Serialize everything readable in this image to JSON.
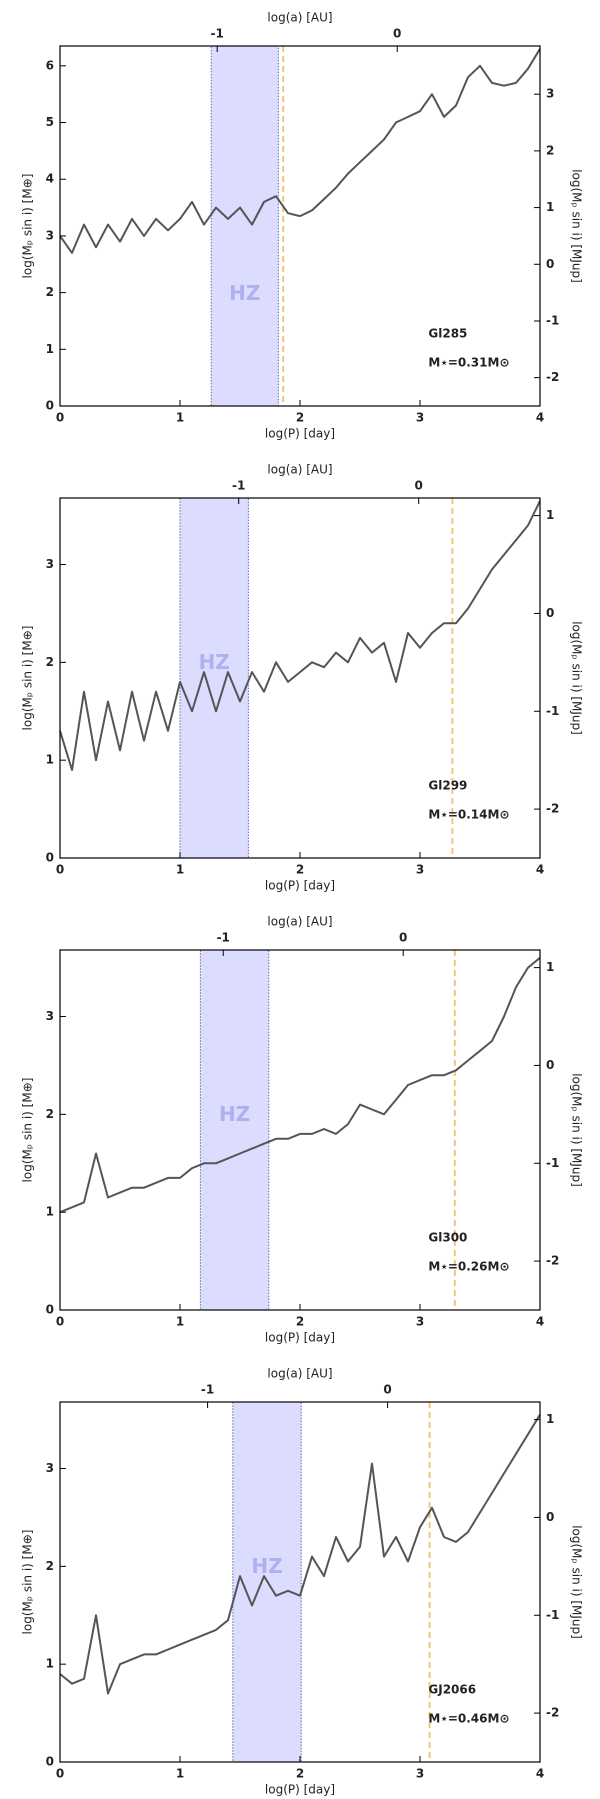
{
  "chart_data": [
    {
      "type": "line",
      "xlabel": "log(P) [day]",
      "ylabel": "log(Mₚ sin i) [M⊕]",
      "y2label": "log(Mₚ sin i) [MJup]",
      "x2label": "log(a) [AU]",
      "star": "Gl285",
      "mass": "M⋆=0.31M⊙",
      "hz_label": "HZ",
      "hz": [
        1.26,
        1.82
      ],
      "vline": 1.86,
      "color": "#555555",
      "xlim": [
        0,
        4
      ],
      "xticks": [
        0,
        1,
        2,
        3,
        4
      ],
      "ylim": [
        0,
        6.35
      ],
      "yticks": [
        0,
        1,
        2,
        3,
        4,
        5,
        6
      ],
      "y2lim": [
        -2.5,
        3.85
      ],
      "y2ticks": [
        -2,
        -1,
        0,
        1,
        2,
        3
      ],
      "x2lim": [
        -1.873,
        0.793
      ],
      "x2ticks": [
        -1,
        0
      ],
      "x": [
        0,
        0.1,
        0.2,
        0.3,
        0.4,
        0.5,
        0.6,
        0.7,
        0.8,
        0.9,
        1,
        1.1,
        1.2,
        1.3,
        1.4,
        1.5,
        1.6,
        1.7,
        1.8,
        1.9,
        2,
        2.1,
        2.2,
        2.3,
        2.4,
        2.5,
        2.6,
        2.7,
        2.8,
        2.9,
        3,
        3.1,
        3.2,
        3.3,
        3.4,
        3.5,
        3.6,
        3.7,
        3.8,
        3.9,
        4
      ],
      "values": [
        3.0,
        2.7,
        3.2,
        2.8,
        3.2,
        2.9,
        3.3,
        3.0,
        3.3,
        3.1,
        3.3,
        3.6,
        3.2,
        3.5,
        3.3,
        3.5,
        3.2,
        3.6,
        3.7,
        3.4,
        3.35,
        3.45,
        3.65,
        3.85,
        4.1,
        4.3,
        4.5,
        4.7,
        5.0,
        5.1,
        5.2,
        5.5,
        5.1,
        5.3,
        5.8,
        6.0,
        5.7,
        5.65,
        5.7,
        5.95,
        6.3
      ]
    },
    {
      "type": "line",
      "xlabel": "log(P) [day]",
      "ylabel": "log(Mₚ sin i) [M⊕]",
      "y2label": "log(Mₚ sin i) [MJup]",
      "x2label": "log(a) [AU]",
      "star": "Gl299",
      "mass": "M⋆=0.14M⊙",
      "hz_label": "HZ",
      "hz": [
        1.0,
        1.57
      ],
      "vline": 3.27,
      "color": "#555555",
      "xlim": [
        0,
        4
      ],
      "xticks": [
        0,
        1,
        2,
        3,
        4
      ],
      "ylim": [
        0,
        3.68
      ],
      "yticks": [
        0,
        1,
        2,
        3
      ],
      "y2lim": [
        -2.5,
        1.18
      ],
      "y2ticks": [
        -2,
        -1,
        0,
        1
      ],
      "x2lim": [
        -1.993,
        0.674
      ],
      "x2ticks": [
        -1,
        0
      ],
      "x": [
        0,
        0.1,
        0.2,
        0.3,
        0.4,
        0.5,
        0.6,
        0.7,
        0.8,
        0.9,
        1,
        1.1,
        1.2,
        1.3,
        1.4,
        1.5,
        1.6,
        1.7,
        1.8,
        1.9,
        2,
        2.1,
        2.2,
        2.3,
        2.4,
        2.5,
        2.6,
        2.7,
        2.8,
        2.9,
        3,
        3.1,
        3.2,
        3.3,
        3.4,
        3.5,
        3.6,
        3.7,
        3.8,
        3.9,
        4
      ],
      "values": [
        1.3,
        0.9,
        1.7,
        1.0,
        1.6,
        1.1,
        1.7,
        1.2,
        1.7,
        1.3,
        1.8,
        1.5,
        1.9,
        1.5,
        1.9,
        1.6,
        1.9,
        1.7,
        2.0,
        1.8,
        1.9,
        2.0,
        1.95,
        2.1,
        2.0,
        2.25,
        2.1,
        2.2,
        1.8,
        2.3,
        2.15,
        2.3,
        2.4,
        2.4,
        2.55,
        2.75,
        2.95,
        3.1,
        3.25,
        3.4,
        3.65
      ]
    },
    {
      "type": "line",
      "xlabel": "log(P) [day]",
      "ylabel": "log(Mₚ sin i) [M⊕]",
      "y2label": "log(Mₚ sin i) [MJup]",
      "x2label": "log(a) [AU]",
      "star": "Gl300",
      "mass": "M⋆=0.26M⊙",
      "hz_label": "HZ",
      "hz": [
        1.17,
        1.74
      ],
      "vline": 3.29,
      "color": "#555555",
      "xlim": [
        0,
        4
      ],
      "xticks": [
        0,
        1,
        2,
        3,
        4
      ],
      "ylim": [
        0,
        3.68
      ],
      "yticks": [
        0,
        1,
        2,
        3
      ],
      "y2lim": [
        -2.5,
        1.18
      ],
      "y2ticks": [
        -2,
        -1,
        0,
        1
      ],
      "x2lim": [
        -1.907,
        0.76
      ],
      "x2ticks": [
        -1,
        0
      ],
      "x": [
        0,
        0.1,
        0.2,
        0.3,
        0.4,
        0.5,
        0.6,
        0.7,
        0.8,
        0.9,
        1,
        1.1,
        1.2,
        1.3,
        1.4,
        1.5,
        1.6,
        1.7,
        1.8,
        1.9,
        2,
        2.1,
        2.2,
        2.3,
        2.4,
        2.5,
        2.6,
        2.7,
        2.8,
        2.9,
        3,
        3.1,
        3.2,
        3.3,
        3.4,
        3.5,
        3.6,
        3.7,
        3.8,
        3.9,
        4
      ],
      "values": [
        1.0,
        1.05,
        1.1,
        1.6,
        1.15,
        1.2,
        1.25,
        1.25,
        1.3,
        1.35,
        1.35,
        1.45,
        1.5,
        1.5,
        1.55,
        1.6,
        1.65,
        1.7,
        1.75,
        1.75,
        1.8,
        1.8,
        1.85,
        1.8,
        1.9,
        2.1,
        2.05,
        2.0,
        2.15,
        2.3,
        2.35,
        2.4,
        2.4,
        2.45,
        2.55,
        2.65,
        2.75,
        3.0,
        3.3,
        3.5,
        3.6
      ]
    },
    {
      "type": "line",
      "xlabel": "log(P) [day]",
      "ylabel": "log(Mₚ sin i) [M⊕]",
      "y2label": "log(Mₚ sin i) [MJup]",
      "x2label": "log(a) [AU]",
      "star": "GJ2066",
      "mass": "M⋆=0.46M⊙",
      "hz_label": "HZ",
      "hz": [
        1.44,
        2.01
      ],
      "vline": 3.08,
      "color": "#555555",
      "xlim": [
        0,
        4
      ],
      "xticks": [
        0,
        1,
        2,
        3,
        4
      ],
      "ylim": [
        0,
        3.68
      ],
      "yticks": [
        0,
        1,
        2,
        3
      ],
      "y2lim": [
        -2.5,
        1.18
      ],
      "y2ticks": [
        -2,
        -1,
        0,
        1
      ],
      "x2lim": [
        -1.82,
        0.847
      ],
      "x2ticks": [
        -1,
        0
      ],
      "x": [
        0,
        0.1,
        0.2,
        0.3,
        0.4,
        0.5,
        0.6,
        0.7,
        0.8,
        0.9,
        1,
        1.1,
        1.2,
        1.3,
        1.4,
        1.5,
        1.6,
        1.7,
        1.8,
        1.9,
        2,
        2.1,
        2.2,
        2.3,
        2.4,
        2.5,
        2.6,
        2.7,
        2.8,
        2.9,
        3,
        3.1,
        3.2,
        3.3,
        3.4,
        3.5,
        3.6,
        3.7,
        3.8,
        3.9,
        4
      ],
      "values": [
        0.9,
        0.8,
        0.85,
        1.5,
        0.7,
        1.0,
        1.05,
        1.1,
        1.1,
        1.15,
        1.2,
        1.25,
        1.3,
        1.35,
        1.45,
        1.9,
        1.6,
        1.9,
        1.7,
        1.75,
        1.7,
        2.1,
        1.9,
        2.3,
        2.05,
        2.2,
        3.05,
        2.1,
        2.3,
        2.05,
        2.4,
        2.6,
        2.3,
        2.25,
        2.35,
        2.55,
        2.75,
        2.95,
        3.15,
        3.35,
        3.55
      ]
    }
  ]
}
